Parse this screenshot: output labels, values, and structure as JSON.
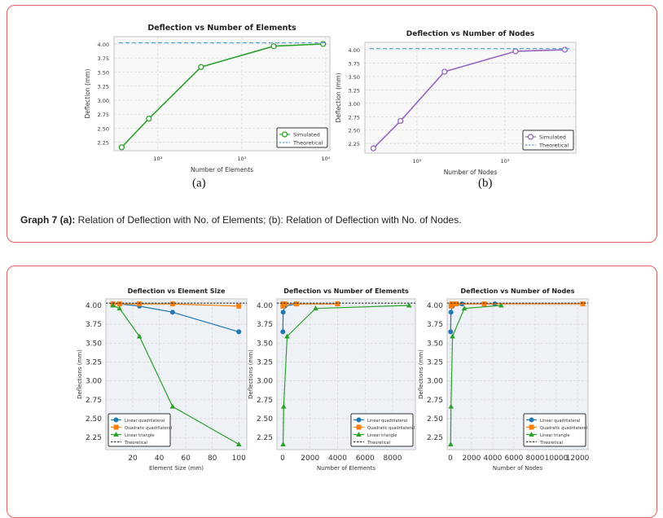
{
  "top_figure": {
    "sub_a": "(a)",
    "sub_b": "(b)",
    "caption_bold": "Graph 7 (a):",
    "caption_rest": "  Relation of Deflection with No. of Elements; (b): Relation of Deflection with No. of Nodes."
  },
  "colors": {
    "green": "#2ca02c",
    "purple": "#9467bd",
    "blue": "#1f77b4",
    "orange": "#ff7f0e",
    "theory_blue": "#5a9bd5",
    "theory_black": "#333333",
    "border": "#e06060"
  },
  "chart_data": [
    {
      "type": "line",
      "title": "Deflection vs Number of Elements",
      "xlabel": "Number of Elements",
      "ylabel": "Deflection (mm)",
      "xscale": "log",
      "xlim": [
        30,
        11200
      ],
      "ylim": [
        2.1,
        4.13
      ],
      "grid": true,
      "legend": "bottom-right",
      "xticks": [
        {
          "v": 100,
          "label": "10²"
        },
        {
          "v": 1000,
          "label": "10³"
        },
        {
          "v": 10000,
          "label": "10⁴"
        }
      ],
      "yticks": [
        "2.25",
        "2.50",
        "2.75",
        "3.00",
        "3.25",
        "3.50",
        "3.75",
        "4.00"
      ],
      "series": [
        {
          "name": "Simulated",
          "color": "#2ca02c",
          "marker": "open-circle",
          "x": [
            37,
            78,
            327,
            2400,
            9300
          ],
          "y": [
            2.16,
            2.67,
            3.59,
            3.96,
            4.0
          ]
        },
        {
          "name": "Theoretical",
          "color": "#5a9bd5",
          "style": "dashed",
          "y_const": 4.02
        }
      ]
    },
    {
      "type": "line",
      "title": "Deflection vs Number of Nodes",
      "xlabel": "Number of Nodes",
      "ylabel": "Deflection (mm)",
      "xscale": "log",
      "xlim": [
        25.6,
        6400
      ],
      "ylim": [
        2.07,
        4.137
      ],
      "grid": true,
      "legend": "bottom-right",
      "xticks": [
        {
          "v": 100,
          "label": "10²"
        },
        {
          "v": 1000,
          "label": "10³"
        }
      ],
      "yticks": [
        "2.25",
        "2.50",
        "2.75",
        "3.00",
        "3.25",
        "3.50",
        "3.75",
        "4.00"
      ],
      "series": [
        {
          "name": "Simulated",
          "color": "#9467bd",
          "marker": "open-circle",
          "x": [
            32,
            65,
            206,
            1320,
            4800
          ],
          "y": [
            2.16,
            2.67,
            3.59,
            3.97,
            4.0
          ]
        },
        {
          "name": "Theoretical",
          "color": "#5a9bd5",
          "style": "dashed",
          "y_const": 4.02
        }
      ]
    },
    {
      "type": "line",
      "title": "Deflection vs Element Size",
      "xlabel": "Element Size (mm)",
      "ylabel": "Deflections (mm)",
      "xscale": "linear",
      "xlim": [
        -0.3,
        106
      ],
      "ylim": [
        2.09,
        4.086
      ],
      "grid": true,
      "legend": "bottom-left",
      "xticks": [
        {
          "v": 20,
          "label": "20"
        },
        {
          "v": 40,
          "label": "40"
        },
        {
          "v": 60,
          "label": "60"
        },
        {
          "v": 80,
          "label": "80"
        },
        {
          "v": 100,
          "label": "100"
        }
      ],
      "yticks": [
        "2.25",
        "2.50",
        "2.75",
        "3.00",
        "3.25",
        "3.50",
        "3.75",
        "4.00"
      ],
      "series": [
        {
          "name": "Linear quadrilateral",
          "color": "#1f77b4",
          "marker": "circle",
          "x": [
            5,
            10,
            25,
            50,
            100
          ],
          "y": [
            4.02,
            4.02,
            3.99,
            3.91,
            3.65
          ]
        },
        {
          "name": "Quadratic quadrilateral",
          "color": "#ff7f0e",
          "marker": "square",
          "x": [
            5,
            10,
            25,
            50,
            100
          ],
          "y": [
            4.02,
            4.02,
            4.02,
            4.02,
            3.99
          ]
        },
        {
          "name": "Linear triangle",
          "color": "#2ca02c",
          "marker": "triangle",
          "x": [
            5,
            10,
            25,
            50,
            100
          ],
          "y": [
            4.0,
            3.96,
            3.59,
            2.66,
            2.16
          ]
        },
        {
          "name": "Theoretical",
          "color": "#333333",
          "style": "dashed",
          "y_const": 4.03
        }
      ]
    },
    {
      "type": "line",
      "title": "Deflection vs Number of Elements",
      "xlabel": "Number of Elements",
      "ylabel": "Deflections (mm)",
      "xscale": "linear",
      "xlim": [
        -415,
        9660
      ],
      "ylim": [
        2.09,
        4.086
      ],
      "grid": true,
      "legend": "bottom-right",
      "xticks": [
        {
          "v": 0,
          "label": "0"
        },
        {
          "v": 2000,
          "label": "2000"
        },
        {
          "v": 4000,
          "label": "4000"
        },
        {
          "v": 6000,
          "label": "6000"
        },
        {
          "v": 8000,
          "label": "8000"
        }
      ],
      "yticks": [
        "2.25",
        "2.50",
        "2.75",
        "3.00",
        "3.25",
        "3.50",
        "3.75",
        "4.00"
      ],
      "series": [
        {
          "name": "Linear quadrilateral",
          "color": "#1f77b4",
          "marker": "circle",
          "x": [
            18,
            40,
            160,
            1000,
            4000
          ],
          "y": [
            3.65,
            3.91,
            3.99,
            4.02,
            4.02
          ]
        },
        {
          "name": "Quadratic quadrilateral",
          "color": "#ff7f0e",
          "marker": "square",
          "x": [
            18,
            40,
            160,
            1000,
            4000
          ],
          "y": [
            3.99,
            4.02,
            4.02,
            4.02,
            4.02
          ]
        },
        {
          "name": "Linear triangle",
          "color": "#2ca02c",
          "marker": "triangle",
          "x": [
            37,
            78,
            327,
            2400,
            9200
          ],
          "y": [
            2.16,
            2.66,
            3.59,
            3.96,
            4.0
          ]
        },
        {
          "name": "Theoretical",
          "color": "#333333",
          "style": "dashed",
          "y_const": 4.03
        }
      ]
    },
    {
      "type": "line",
      "title": "Deflection vs Number of Nodes",
      "xlabel": "Number of Nodes",
      "ylabel": "Deflections (mm)",
      "xscale": "linear",
      "xlim": [
        -300,
        13000
      ],
      "ylim": [
        2.09,
        4.086
      ],
      "grid": true,
      "legend": "bottom-right",
      "xticks": [
        {
          "v": 0,
          "label": "0"
        },
        {
          "v": 2000,
          "label": "2000"
        },
        {
          "v": 4000,
          "label": "4000"
        },
        {
          "v": 6000,
          "label": "6000"
        },
        {
          "v": 8000,
          "label": "8000"
        },
        {
          "v": 10000,
          "label": "10000"
        },
        {
          "v": 12000,
          "label": "12000"
        }
      ],
      "yticks": [
        "2.25",
        "2.50",
        "2.75",
        "3.00",
        "3.25",
        "3.50",
        "3.75",
        "4.00"
      ],
      "series": [
        {
          "name": "Linear quadrilateral",
          "color": "#1f77b4",
          "marker": "circle",
          "x": [
            30,
            60,
            200,
            1100,
            4200
          ],
          "y": [
            3.65,
            3.91,
            3.99,
            4.02,
            4.02
          ]
        },
        {
          "name": "Quadratic quadrilateral",
          "color": "#ff7f0e",
          "marker": "square",
          "x": [
            70,
            150,
            550,
            3200,
            12500
          ],
          "y": [
            3.99,
            4.02,
            4.02,
            4.02,
            4.02
          ]
        },
        {
          "name": "Linear triangle",
          "color": "#2ca02c",
          "marker": "triangle",
          "x": [
            32,
            65,
            206,
            1320,
            4800
          ],
          "y": [
            2.16,
            2.66,
            3.59,
            3.96,
            4.0
          ]
        },
        {
          "name": "Theoretical",
          "color": "#333333",
          "style": "dashed",
          "y_const": 4.03
        }
      ]
    }
  ]
}
